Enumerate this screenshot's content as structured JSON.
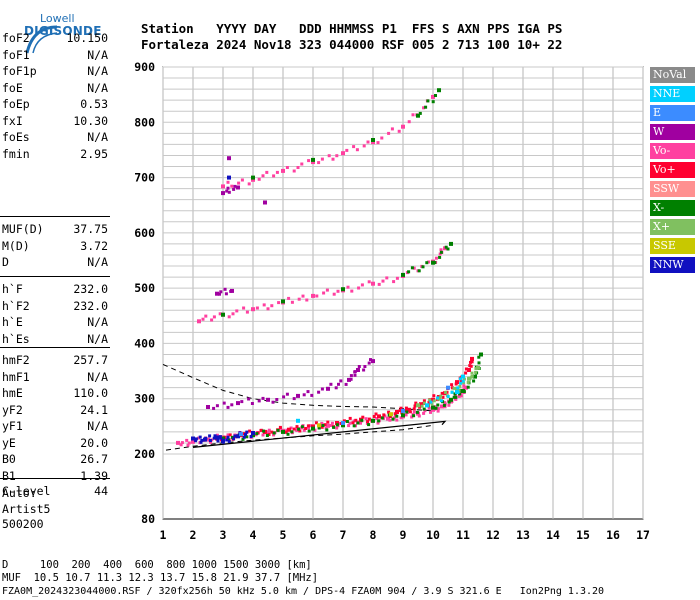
{
  "logo": {
    "line1": "Lowell",
    "line2": "DIGISONDE"
  },
  "header": {
    "line1": "Station   YYYY DAY   DDD HHMMSS P1  FFS S AXN PPS IGA PS",
    "line2": "Fortaleza 2024 Nov18 323 044000 RSF 005 2 713 100 10+ 22"
  },
  "params": {
    "group1": [
      {
        "name": "foF2",
        "value": "10.150"
      },
      {
        "name": "foF1",
        "value": "N/A"
      },
      {
        "name": "foF1p",
        "value": "N/A"
      },
      {
        "name": "foE",
        "value": "N/A"
      },
      {
        "name": "foEp",
        "value": "0.53"
      },
      {
        "name": "fxI",
        "value": "10.30"
      },
      {
        "name": "foEs",
        "value": "N/A"
      },
      {
        "name": "fmin",
        "value": "2.95"
      }
    ],
    "group2": [
      {
        "name": "MUF(D)",
        "value": "37.75"
      },
      {
        "name": "M(D)",
        "value": "3.72"
      },
      {
        "name": "D",
        "value": "N/A"
      }
    ],
    "group3": [
      {
        "name": "h`F",
        "value": "232.0"
      },
      {
        "name": "h`F2",
        "value": "232.0"
      },
      {
        "name": "h`E",
        "value": "N/A"
      },
      {
        "name": "h`Es",
        "value": "N/A"
      }
    ],
    "group4": [
      {
        "name": "hmF2",
        "value": "257.7"
      },
      {
        "name": "hmF1",
        "value": "N/A"
      },
      {
        "name": "hmE",
        "value": "110.0"
      },
      {
        "name": "yF2",
        "value": "24.1"
      },
      {
        "name": "yF1",
        "value": "N/A"
      },
      {
        "name": "yE",
        "value": "20.0"
      },
      {
        "name": "B0",
        "value": "26.7"
      },
      {
        "name": "B1",
        "value": "1.39"
      }
    ],
    "group5": [
      {
        "name": "C-level",
        "value": "44"
      }
    ],
    "auto": [
      "Auto:",
      "Artist5",
      "500200"
    ]
  },
  "footer": {
    "line1": "D     100  200  400  600  800 1000 1500 3000 [km]",
    "line2": "MUF  10.5 10.7 11.3 12.3 13.7 15.8 21.9 37.7 [MHz]",
    "line3": "FZA0M_2024323044000.RSF / 320fx256h 50 kHz 5.0 km / DPS-4 FZA0M 904 / 3.9 S 321.6 E   Ion2Png 1.3.20"
  },
  "legend": [
    {
      "label": "NoVal",
      "color": "#8a8a8a"
    },
    {
      "label": "NNE",
      "color": "#00d0ff"
    },
    {
      "label": "E",
      "color": "#3c8cff"
    },
    {
      "label": "W",
      "color": "#a000a0"
    },
    {
      "label": "Vo-",
      "color": "#ff40a0"
    },
    {
      "label": "Vo+",
      "color": "#ff0030"
    },
    {
      "label": "SSW",
      "color": "#ff9090"
    },
    {
      "label": "X-",
      "color": "#008000"
    },
    {
      "label": "X+",
      "color": "#80c060"
    },
    {
      "label": "SSE",
      "color": "#c8c800"
    },
    {
      "label": "NNW",
      "color": "#1010c0"
    }
  ],
  "chart_data": {
    "type": "scatter",
    "xlim": [
      1,
      17
    ],
    "ylim": [
      80,
      900
    ],
    "x_ticks": [
      1,
      2,
      3,
      4,
      5,
      6,
      7,
      8,
      9,
      10,
      11,
      12,
      13,
      14,
      15,
      16,
      17
    ],
    "y_ticks": [
      80,
      200,
      300,
      400,
      500,
      600,
      700,
      800,
      900
    ],
    "grid": true,
    "series": [
      {
        "name": "Vo-",
        "color": "#ff40a0",
        "points": [
          [
            1.5,
            220
          ],
          [
            2,
            222
          ],
          [
            2.5,
            226
          ],
          [
            3,
            230
          ],
          [
            3.5,
            233
          ],
          [
            4,
            236
          ],
          [
            4.5,
            239
          ],
          [
            5,
            242
          ],
          [
            5.5,
            245
          ],
          [
            6,
            248
          ],
          [
            6.5,
            251
          ],
          [
            7,
            254
          ],
          [
            7.5,
            257
          ],
          [
            8,
            260
          ],
          [
            8.5,
            264
          ],
          [
            9,
            268
          ],
          [
            9.5,
            273
          ],
          [
            10,
            280
          ],
          [
            10.3,
            286
          ],
          [
            10.6,
            295
          ],
          [
            10.9,
            306
          ],
          [
            11.1,
            320
          ],
          [
            2.2,
            440
          ],
          [
            3,
            452
          ],
          [
            4,
            462
          ],
          [
            5,
            474
          ],
          [
            6,
            486
          ],
          [
            7,
            496
          ],
          [
            8,
            508
          ],
          [
            9,
            522
          ],
          [
            10,
            548
          ],
          [
            10.4,
            572
          ],
          [
            3,
            684
          ],
          [
            4,
            696
          ],
          [
            5,
            712
          ],
          [
            6,
            728
          ],
          [
            7,
            744
          ],
          [
            8,
            764
          ],
          [
            9,
            792
          ],
          [
            10,
            846
          ]
        ]
      },
      {
        "name": "Vo+",
        "color": "#ff0030",
        "points": [
          [
            2.8,
            228
          ],
          [
            3.6,
            234
          ],
          [
            4.4,
            240
          ],
          [
            5.2,
            244
          ],
          [
            6,
            250
          ],
          [
            6.8,
            256
          ],
          [
            7.6,
            262
          ],
          [
            8.2,
            268
          ],
          [
            8.8,
            276
          ],
          [
            9.2,
            280
          ],
          [
            9.6,
            290
          ],
          [
            10,
            298
          ],
          [
            10.4,
            310
          ],
          [
            10.8,
            330
          ],
          [
            11.2,
            352
          ],
          [
            11.3,
            372
          ]
        ]
      },
      {
        "name": "X-",
        "color": "#008000",
        "points": [
          [
            3,
            228
          ],
          [
            4,
            234
          ],
          [
            5,
            240
          ],
          [
            6,
            246
          ],
          [
            7,
            252
          ],
          [
            8,
            260
          ],
          [
            9,
            270
          ],
          [
            10,
            284
          ],
          [
            10.6,
            298
          ],
          [
            11,
            314
          ],
          [
            11.4,
            340
          ],
          [
            11.6,
            380
          ],
          [
            3,
            452
          ],
          [
            5,
            476
          ],
          [
            7,
            498
          ],
          [
            9,
            524
          ],
          [
            10,
            546
          ],
          [
            10.6,
            580
          ],
          [
            4,
            700
          ],
          [
            6,
            732
          ],
          [
            8,
            768
          ],
          [
            9.5,
            812
          ],
          [
            10.2,
            858
          ]
        ]
      },
      {
        "name": "X+",
        "color": "#80c060",
        "points": [
          [
            9.5,
            288
          ],
          [
            10.2,
            300
          ],
          [
            10.8,
            318
          ],
          [
            11.2,
            336
          ],
          [
            11.5,
            356
          ]
        ]
      },
      {
        "name": "W",
        "color": "#a000a0",
        "points": [
          [
            2.5,
            285
          ],
          [
            3.5,
            292
          ],
          [
            4.5,
            298
          ],
          [
            5.5,
            305
          ],
          [
            6.5,
            318
          ],
          [
            7.2,
            334
          ],
          [
            7.5,
            352
          ],
          [
            8,
            368
          ],
          [
            3,
            672
          ],
          [
            3.5,
            682
          ],
          [
            3.2,
            735
          ],
          [
            4.4,
            655
          ],
          [
            2.8,
            490
          ],
          [
            3.3,
            495
          ]
        ]
      },
      {
        "name": "NNW",
        "color": "#1010c0",
        "points": [
          [
            2,
            228
          ],
          [
            2.4,
            226
          ],
          [
            2.8,
            230
          ],
          [
            3,
            224
          ],
          [
            3.5,
            232
          ],
          [
            4,
            238
          ],
          [
            3.2,
            700
          ]
        ]
      },
      {
        "name": "NNE",
        "color": "#00d0ff",
        "points": [
          [
            5.5,
            260
          ],
          [
            9.8,
            288
          ],
          [
            10.8,
            312
          ],
          [
            11,
            340
          ]
        ]
      },
      {
        "name": "E",
        "color": "#3c8cff",
        "points": [
          [
            3.6,
            236
          ],
          [
            7,
            256
          ],
          [
            9,
            278
          ],
          [
            10.5,
            320
          ]
        ]
      },
      {
        "name": "SSE",
        "color": "#c8c800",
        "points": [
          [
            6.2,
            252
          ],
          [
            8.6,
            272
          ]
        ]
      }
    ],
    "profile_curve": {
      "x": [
        1,
        2,
        3,
        4,
        5,
        6,
        7,
        8,
        9,
        10
      ],
      "y": [
        362,
        338,
        315,
        300,
        292,
        288,
        286,
        285,
        282,
        278
      ]
    },
    "upper_curve": {
      "x": [
        2,
        3,
        4,
        5,
        6,
        7,
        8,
        9,
        10,
        10.4
      ],
      "y": [
        212,
        218,
        224,
        230,
        236,
        241,
        246,
        251,
        256,
        259
      ]
    },
    "lower_curve": {
      "x": [
        1.1,
        2,
        3,
        4,
        5,
        6,
        7,
        8,
        9,
        10
      ],
      "y": [
        207,
        214,
        220,
        225,
        229,
        233,
        236,
        240,
        244,
        252
      ]
    }
  }
}
